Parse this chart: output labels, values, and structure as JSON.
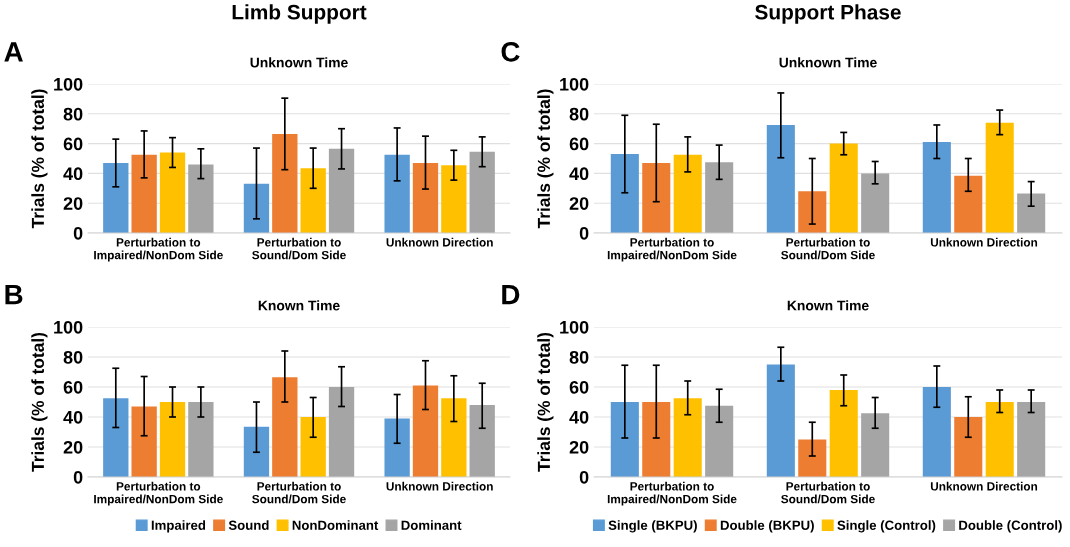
{
  "chart_data": [
    {
      "type": "bar",
      "title": "Unknown Time",
      "ylabel": "Trials (% of total)",
      "annotations": [
        "A",
        "Limb Support"
      ],
      "categories": [
        "Perturbation to\nImpaired/NonDom Side",
        "Perturbation to\nSound/Dom Side",
        "Unknown Direction"
      ],
      "ylim": [
        0,
        100
      ],
      "yticks": [
        0,
        20,
        40,
        60,
        80,
        100
      ],
      "grid": "y",
      "legend": false,
      "series": [
        {
          "color": "#5b9bd5",
          "values": [
            47,
            33,
            52.5
          ],
          "errors": [
            [
              31,
              63
            ],
            [
              9.5,
              57
            ],
            [
              35,
              70.5
            ]
          ]
        },
        {
          "color": "#ed7d31",
          "values": [
            52.5,
            66.5,
            47
          ],
          "errors": [
            [
              37,
              68.5
            ],
            [
              42.5,
              90.5
            ],
            [
              29.5,
              65
            ]
          ]
        },
        {
          "color": "#ffc000",
          "values": [
            54,
            43.5,
            45.5
          ],
          "errors": [
            [
              44,
              64
            ],
            [
              30,
              57
            ],
            [
              35.5,
              55.5
            ]
          ]
        },
        {
          "color": "#a5a5a5",
          "values": [
            46,
            56.5,
            54.5
          ],
          "errors": [
            [
              36.5,
              56.5
            ],
            [
              43,
              70
            ],
            [
              44.5,
              64.5
            ]
          ]
        }
      ]
    },
    {
      "type": "bar",
      "title": "Known Time",
      "ylabel": "Trials (% of total)",
      "annotations": [
        "B"
      ],
      "categories": [
        "Perturbation to\nImpaired/NonDom Side",
        "Perturbation to\nSound/Dom Side",
        "Unknown Direction"
      ],
      "ylim": [
        0,
        100
      ],
      "yticks": [
        0,
        20,
        40,
        60,
        80,
        100
      ],
      "grid": "y",
      "legend": "bottom",
      "series": [
        {
          "name": "Impaired",
          "color": "#5b9bd5",
          "values": [
            52.5,
            33.5,
            39
          ],
          "errors": [
            [
              33,
              72.5
            ],
            [
              16.5,
              50
            ],
            [
              22.5,
              55
            ]
          ]
        },
        {
          "name": "Sound",
          "color": "#ed7d31",
          "values": [
            47,
            66.5,
            61
          ],
          "errors": [
            [
              27.5,
              67
            ],
            [
              50,
              84
            ],
            [
              45,
              77.5
            ]
          ]
        },
        {
          "name": "NonDominant",
          "color": "#ffc000",
          "values": [
            50,
            40,
            52.5
          ],
          "errors": [
            [
              40,
              60
            ],
            [
              26.5,
              53
            ],
            [
              37,
              67.5
            ]
          ]
        },
        {
          "name": "Dominant",
          "color": "#a5a5a5",
          "values": [
            50,
            60,
            48
          ],
          "errors": [
            [
              40,
              60
            ],
            [
              47,
              73.5
            ],
            [
              32.5,
              62.5
            ]
          ]
        }
      ]
    },
    {
      "type": "bar",
      "title": "Unknown Time",
      "ylabel": "Trials (% of total)",
      "annotations": [
        "C",
        "Support Phase"
      ],
      "categories": [
        "Perturbation to\nImpaired/NonDom Side",
        "Perturbation to\nSound/Dom Side",
        "Unknown Direction"
      ],
      "ylim": [
        0,
        100
      ],
      "yticks": [
        0,
        20,
        40,
        60,
        80,
        100
      ],
      "grid": "y",
      "legend": false,
      "series": [
        {
          "color": "#5b9bd5",
          "values": [
            53,
            72.5,
            61
          ],
          "errors": [
            [
              27,
              79
            ],
            [
              50.5,
              94
            ],
            [
              50,
              72.5
            ]
          ]
        },
        {
          "color": "#ed7d31",
          "values": [
            47,
            28,
            38.5
          ],
          "errors": [
            [
              21,
              73
            ],
            [
              6,
              50
            ],
            [
              28,
              50
            ]
          ]
        },
        {
          "color": "#ffc000",
          "values": [
            52.5,
            60,
            74
          ],
          "errors": [
            [
              41,
              64.5
            ],
            [
              52.5,
              67.5
            ],
            [
              66,
              82.5
            ]
          ]
        },
        {
          "color": "#a5a5a5",
          "values": [
            47.5,
            40,
            26.5
          ],
          "errors": [
            [
              36,
              59
            ],
            [
              33,
              48
            ],
            [
              18,
              34.5
            ]
          ]
        }
      ]
    },
    {
      "type": "bar",
      "title": "Known Time",
      "ylabel": "Trials (% of total)",
      "annotations": [
        "D"
      ],
      "categories": [
        "Perturbation to\nImpaired/NonDom Side",
        "Perturbation to\nSound/Dom Side",
        "Unknown Direction"
      ],
      "ylim": [
        0,
        100
      ],
      "yticks": [
        0,
        20,
        40,
        60,
        80,
        100
      ],
      "grid": "y",
      "legend": "bottom",
      "series": [
        {
          "name": "Single (BKPU)",
          "color": "#5b9bd5",
          "values": [
            50,
            75,
            60
          ],
          "errors": [
            [
              26,
              74.5
            ],
            [
              64,
              86.5
            ],
            [
              46.5,
              74
            ]
          ]
        },
        {
          "name": "Double (BKPU)",
          "color": "#ed7d31",
          "values": [
            50,
            25,
            40
          ],
          "errors": [
            [
              26,
              74.5
            ],
            [
              14,
              36.5
            ],
            [
              26.5,
              53.5
            ]
          ]
        },
        {
          "name": "Single (Control)",
          "color": "#ffc000",
          "values": [
            52.5,
            58,
            50
          ],
          "errors": [
            [
              41.5,
              64
            ],
            [
              47.5,
              68
            ],
            [
              43,
              58
            ]
          ]
        },
        {
          "name": "Double (Control)",
          "color": "#a5a5a5",
          "values": [
            47.5,
            42.5,
            50
          ],
          "errors": [
            [
              36.5,
              58.5
            ],
            [
              32.5,
              53
            ],
            [
              43,
              58
            ]
          ]
        }
      ]
    }
  ]
}
